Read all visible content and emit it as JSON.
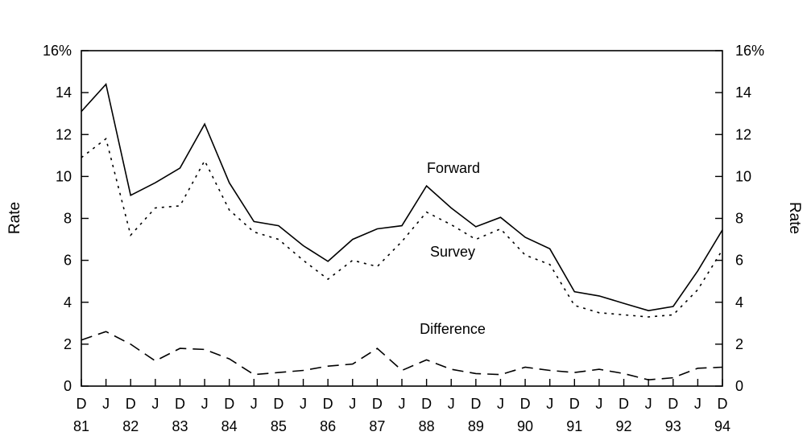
{
  "chart_data": {
    "type": "line",
    "title": "",
    "ylabel_left": "Rate",
    "ylabel_right": "Rate",
    "ylim": [
      0,
      16
    ],
    "yticks": [
      0,
      2,
      4,
      6,
      8,
      10,
      12,
      14,
      16
    ],
    "ytick_labels": [
      "0",
      "2",
      "4",
      "6",
      "8",
      "10",
      "12",
      "14",
      "16%"
    ],
    "grid": false,
    "x_ticks": [
      {
        "month": "D",
        "year": "81"
      },
      {
        "month": "J",
        "year": ""
      },
      {
        "month": "D",
        "year": "82"
      },
      {
        "month": "J",
        "year": ""
      },
      {
        "month": "D",
        "year": "83"
      },
      {
        "month": "J",
        "year": ""
      },
      {
        "month": "D",
        "year": "84"
      },
      {
        "month": "J",
        "year": ""
      },
      {
        "month": "D",
        "year": "85"
      },
      {
        "month": "J",
        "year": ""
      },
      {
        "month": "D",
        "year": "86"
      },
      {
        "month": "J",
        "year": ""
      },
      {
        "month": "D",
        "year": "87"
      },
      {
        "month": "J",
        "year": ""
      },
      {
        "month": "D",
        "year": "88"
      },
      {
        "month": "J",
        "year": ""
      },
      {
        "month": "D",
        "year": "89"
      },
      {
        "month": "J",
        "year": ""
      },
      {
        "month": "D",
        "year": "90"
      },
      {
        "month": "J",
        "year": ""
      },
      {
        "month": "D",
        "year": "91"
      },
      {
        "month": "J",
        "year": ""
      },
      {
        "month": "D",
        "year": "92"
      },
      {
        "month": "J",
        "year": ""
      },
      {
        "month": "D",
        "year": "93"
      },
      {
        "month": "J",
        "year": ""
      },
      {
        "month": "D",
        "year": "94"
      }
    ],
    "series": [
      {
        "name": "Forward",
        "style": "solid",
        "values": [
          13.1,
          14.4,
          9.1,
          9.7,
          10.4,
          12.5,
          9.7,
          7.85,
          7.65,
          6.7,
          5.95,
          7.0,
          7.5,
          7.65,
          9.55,
          8.5,
          7.6,
          8.05,
          7.1,
          6.55,
          4.5,
          4.3,
          3.95,
          3.6,
          3.8,
          5.5,
          7.45
        ]
      },
      {
        "name": "Survey",
        "style": "dotted",
        "values": [
          10.9,
          11.8,
          7.2,
          8.5,
          8.6,
          10.75,
          8.4,
          7.35,
          7.0,
          6.0,
          5.1,
          6.0,
          5.7,
          6.9,
          8.3,
          7.7,
          7.0,
          7.5,
          6.25,
          5.8,
          3.85,
          3.5,
          3.4,
          3.3,
          3.4,
          4.6,
          6.5
        ]
      },
      {
        "name": "Difference",
        "style": "dashed",
        "values": [
          2.2,
          2.6,
          2.0,
          1.2,
          1.8,
          1.75,
          1.3,
          0.55,
          0.65,
          0.75,
          0.95,
          1.05,
          1.8,
          0.75,
          1.25,
          0.8,
          0.6,
          0.55,
          0.9,
          0.75,
          0.65,
          0.8,
          0.6,
          0.3,
          0.4,
          0.85,
          0.9
        ]
      }
    ],
    "annotations": [
      {
        "text": "Forward",
        "series": "Forward"
      },
      {
        "text": "Survey",
        "series": "Survey"
      },
      {
        "text": "Difference",
        "series": "Difference"
      }
    ]
  },
  "colors": {
    "line": "#000000",
    "background": "#ffffff"
  }
}
